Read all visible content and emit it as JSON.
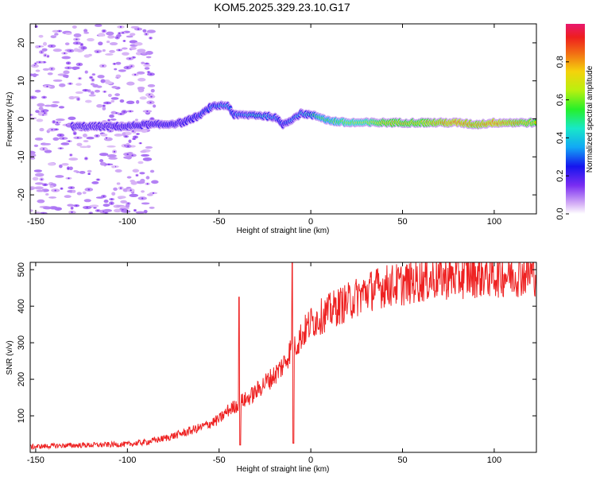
{
  "title": "KOM5.2025.329.23.10.G17",
  "chart_data": [
    {
      "type": "heatmap",
      "title": "KOM5.2025.329.23.10.G17",
      "xlabel": "Height of straight line (km)",
      "ylabel": "Frequency (Hz)",
      "xlim": [
        -153,
        123
      ],
      "ylim": [
        -25,
        25
      ],
      "xticks": [
        -150,
        -100,
        -50,
        0,
        50,
        100
      ],
      "yticks": [
        -20,
        -10,
        0,
        10,
        20
      ],
      "colorbar": {
        "label": "Normalized spectral amplitude",
        "range": [
          0,
          1
        ],
        "ticks": [
          0.0,
          0.2,
          0.4,
          0.6,
          0.8
        ]
      },
      "ridge": {
        "x": [
          -130,
          -120,
          -110,
          -100,
          -90,
          -80,
          -70,
          -60,
          -55,
          -50,
          -45,
          -42,
          -40,
          -30,
          -20,
          -15,
          -10,
          -5,
          0,
          5,
          10,
          20,
          30,
          40,
          50,
          60,
          70,
          80,
          90,
          100,
          110,
          123
        ],
        "freq": [
          -2,
          -2,
          -2,
          -2,
          -1.5,
          -1.5,
          -1,
          1,
          3,
          3.5,
          3.5,
          1,
          1,
          1,
          0.5,
          -1.5,
          0,
          1.5,
          1,
          0.5,
          -0.5,
          -1,
          -1,
          -1,
          -1,
          -1,
          -1,
          -1,
          -1.5,
          -1,
          -1,
          -1
        ],
        "amplitude": [
          0.15,
          0.15,
          0.15,
          0.2,
          0.2,
          0.25,
          0.2,
          0.3,
          0.35,
          0.4,
          0.4,
          0.3,
          0.4,
          0.5,
          0.45,
          0.3,
          0.4,
          0.45,
          0.5,
          0.6,
          0.6,
          0.7,
          0.7,
          0.8,
          0.8,
          0.8,
          0.85,
          0.9,
          0.85,
          0.9,
          0.85,
          0.8
        ]
      },
      "noise_region": [
        -153,
        -85
      ]
    },
    {
      "type": "line",
      "xlabel": "Height of straight line (km)",
      "ylabel": "SNR (v/v)",
      "xlim": [
        -153,
        123
      ],
      "ylim": [
        0,
        520
      ],
      "xticks": [
        -150,
        -100,
        -50,
        0,
        50,
        100
      ],
      "yticks": [
        100,
        200,
        300,
        400,
        500
      ],
      "series": [
        {
          "name": "SNR",
          "color": "#ee2222",
          "x": [
            -153,
            -140,
            -120,
            -100,
            -90,
            -80,
            -70,
            -60,
            -50,
            -45,
            -40,
            -39,
            -38,
            -35,
            -30,
            -25,
            -20,
            -15,
            -11,
            -10,
            -9,
            -5,
            0,
            5,
            10,
            15,
            20,
            30,
            40,
            50,
            60,
            70,
            80,
            90,
            100,
            110,
            123
          ],
          "y": [
            15,
            18,
            20,
            22,
            28,
            38,
            52,
            68,
            90,
            115,
            130,
            425,
            140,
            145,
            165,
            190,
            210,
            240,
            280,
            520,
            290,
            320,
            355,
            370,
            385,
            400,
            410,
            440,
            455,
            460,
            470,
            478,
            480,
            485,
            485,
            488,
            490
          ]
        }
      ]
    }
  ]
}
